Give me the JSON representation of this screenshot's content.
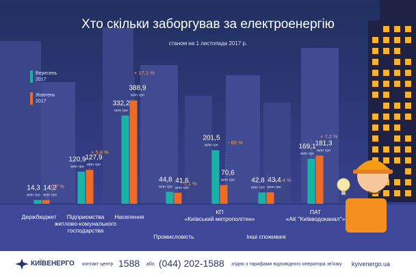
{
  "chart_data": {
    "type": "bar",
    "title": "Хто скільки заборгував за електроенергію",
    "subtitle": "станом на 1 листопада 2017 р.",
    "legend_year": "2017",
    "unit": "млн грн",
    "categories": [
      "Держбюджет",
      "Підприємства житлово-комунального господарства",
      "Населення",
      "Промисловість",
      "КП «Київський метрополітен»",
      "Інші споживачі",
      "ПАТ «АК \"Київводоканал\"»"
    ],
    "category_labels": [
      [
        "Держбюджет"
      ],
      [
        "Підприємства",
        "житлово-комунального",
        "господарства"
      ],
      [
        "Населення"
      ],
      [
        "Промисловість"
      ],
      [
        "КП",
        "«Київський метрополітен»"
      ],
      [
        "Інші споживачі"
      ],
      [
        "ПАТ",
        "«АК \"Київводоканал\"»"
      ]
    ],
    "series": [
      {
        "name": "Вересень",
        "color": "#18b3a6",
        "values": [
          14.3,
          120.9,
          332.2,
          44.8,
          201.5,
          42.8,
          169.1
        ],
        "labels": [
          "14,3",
          "120,9",
          "332,2",
          "44,8",
          "201,5",
          "42,8",
          "169,1"
        ]
      },
      {
        "name": "Жовтень",
        "color": "#ef6a22",
        "values": [
          14.2,
          127.9,
          388.9,
          41.6,
          70.6,
          43.4,
          181.3
        ],
        "labels": [
          "14,2",
          "127,9",
          "388,9",
          "41,6",
          "70,6",
          "43,4",
          "181,3"
        ]
      }
    ],
    "changes": [
      "- 0,7 %",
      "+ 5,8 %",
      "+ 17,1 %",
      "- 7,1 %",
      "- 65 %",
      "+ 1,4 %",
      "+ 7,2 %"
    ]
  },
  "footer": {
    "company": "КИЇВЕНЕРГО",
    "contact_label": "контакт-центр",
    "contact_number": "1588",
    "or_label": "або",
    "phone": "(044) 202-1588",
    "tariff_note": "згідно з тарифами відповідного оператора зв'язку",
    "website": "kyivenergo.ua"
  }
}
